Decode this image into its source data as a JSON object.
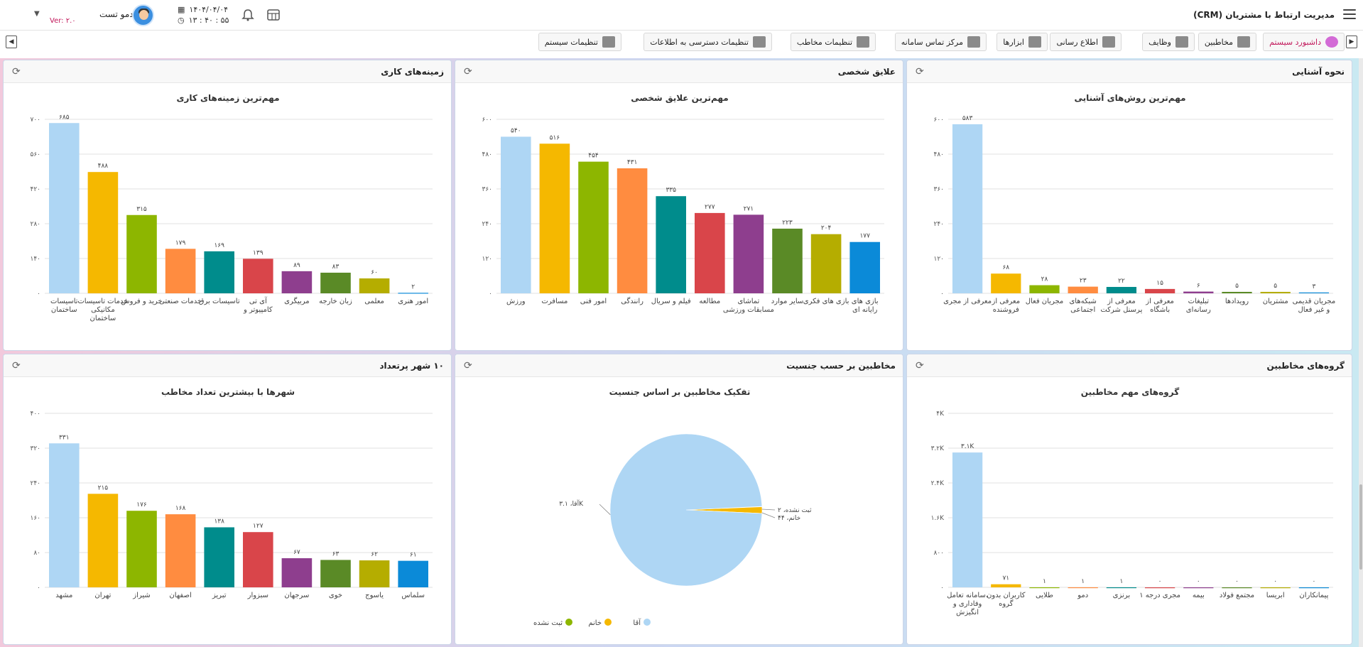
{
  "header": {
    "app_title": "مدیریت ارتباط با مشتریان (CRM)",
    "user_name": "دمو تست",
    "version": "Ver: ۲.۰",
    "date": "۱۴۰۴/۰۴/۰۴",
    "time": "۱۳ : ۴۰ : ۵۵"
  },
  "nav": {
    "items": [
      {
        "label": "داشبورد سیستم",
        "icon": "dashboard-icon"
      },
      {
        "label": "مخاطبین",
        "icon": "contacts-icon"
      },
      {
        "label": "وظایف",
        "icon": "bell-icon"
      },
      {
        "label": "اطلاع رسانی",
        "icon": "envelope-icon"
      },
      {
        "label": "ابزارها",
        "icon": "tools-icon"
      },
      {
        "label": "مرکز تماس سامانه",
        "icon": "phone-icon"
      },
      {
        "label": "تنظیمات مخاطب",
        "icon": "user-gear-icon"
      },
      {
        "label": "تنظیمات دسترسی به اطلاعات",
        "icon": "key-icon"
      },
      {
        "label": "تنظیمات سیستم",
        "icon": "gears-icon"
      }
    ]
  },
  "panels": {
    "acquaintance": {
      "title": "نحوه آشنایی"
    },
    "interests": {
      "title": "علایق شخصی"
    },
    "fields": {
      "title": "زمینه‌های کاری"
    },
    "groups": {
      "title": "گروه‌های مخاطبین"
    },
    "gender": {
      "title": "مخاطبین بر حسب جنسیت"
    },
    "cities": {
      "title": "۱۰ شهر پرتعداد"
    }
  },
  "chart_data": [
    {
      "id": "acquaintance",
      "type": "bar",
      "title": "مهم‌ترین روش‌های آشنایی",
      "categories": [
        "مجریان قدیمی و غیر فعال",
        "مشتریان",
        "رویدادها",
        "تبلیغات رسانه‌ای",
        "معرفی از باشگاه",
        "معرفی از پرسنل شرکت",
        "شبکه‌های اجتماعی",
        "مجریان فعال",
        "معرفی از فروشنده",
        "معرفی از مجری"
      ],
      "values": [
        3,
        5,
        5,
        6,
        15,
        22,
        23,
        28,
        68,
        583
      ],
      "value_labels": [
        "۳",
        "۵",
        "۵",
        "۶",
        "۱۵",
        "۲۲",
        "۲۳",
        "۲۸",
        "۶۸",
        "۵۸۳"
      ],
      "ylim": [
        0,
        600
      ],
      "yticks": [
        0,
        120,
        240,
        360,
        480,
        600
      ],
      "ytick_labels": [
        "۰",
        "۱۲۰",
        "۲۴۰",
        "۳۶۰",
        "۴۸۰",
        "۶۰۰"
      ]
    },
    {
      "id": "interests",
      "type": "bar",
      "title": "مهم‌ترین علایق شخصی",
      "categories": [
        "بازی های رایانه ای",
        "بازی های فکری",
        "سایر موارد",
        "تماشای مسابقات ورزشی",
        "مطالعه",
        "فیلم و سریال",
        "رانندگی",
        "امور فنی",
        "مسافرت",
        "ورزش"
      ],
      "values": [
        177,
        204,
        223,
        271,
        277,
        335,
        431,
        454,
        516,
        540
      ],
      "value_labels": [
        "۱۷۷",
        "۲۰۴",
        "۲۲۳",
        "۲۷۱",
        "۲۷۷",
        "۳۳۵",
        "۴۳۱",
        "۴۵۴",
        "۵۱۶",
        "۵۴۰"
      ],
      "ylim": [
        0,
        600
      ],
      "yticks": [
        0,
        120,
        240,
        360,
        480,
        600
      ],
      "ytick_labels": [
        "۰",
        "۱۲۰",
        "۲۴۰",
        "۳۶۰",
        "۴۸۰",
        "۶۰۰"
      ]
    },
    {
      "id": "fields",
      "type": "bar",
      "title": "مهم‌ترین زمینه‌های کاری",
      "categories": [
        "امور هنری",
        "معلمی",
        "زبان خارجه",
        "مربیگری",
        "آی تی کامپیوتر و",
        "تاسیسات برق",
        "خدمات صنعتی",
        "خرید و فروش",
        "خدمات تاسیسات مکانیکی ساختمان",
        "تاسیسات ساختمان"
      ],
      "values": [
        2,
        60,
        83,
        89,
        139,
        169,
        179,
        315,
        488,
        685
      ],
      "value_labels": [
        "۲",
        "۶۰",
        "۸۳",
        "۸۹",
        "۱۳۹",
        "۱۶۹",
        "۱۷۹",
        "۳۱۵",
        "۴۸۸",
        "۶۸۵"
      ],
      "ylim": [
        0,
        700
      ],
      "yticks": [
        0,
        140,
        280,
        420,
        560,
        700
      ],
      "ytick_labels": [
        "۰",
        "۱۴۰",
        "۲۸۰",
        "۴۲۰",
        "۵۶۰",
        "۷۰۰"
      ]
    },
    {
      "id": "groups",
      "type": "bar",
      "title": "گروه‌های مهم مخاطبین",
      "categories": [
        "پیمانکاران",
        "ابریسا",
        "مجتمع فولاد",
        "بیمه",
        "مجری درجه ۱",
        "برنزی",
        "دمو",
        "طلایی",
        "کاربران بدون گروه",
        "سامانه تعامل، وفاداری و انگیزش"
      ],
      "values": [
        0,
        0,
        0,
        0,
        0,
        1,
        1,
        1,
        71,
        3100
      ],
      "value_labels": [
        "۰",
        "۰",
        "۰",
        "۰",
        "۰",
        "۱",
        "۱",
        "۱",
        "۷۱",
        "۳.۱K"
      ],
      "ylim": [
        0,
        4000
      ],
      "yticks": [
        0,
        800,
        1600,
        2400,
        3200,
        4000
      ],
      "ytick_labels": [
        "۰",
        "۸۰۰",
        "۱.۶K",
        "۲.۴K",
        "۳.۲K",
        "۴K"
      ]
    },
    {
      "id": "gender",
      "type": "pie",
      "title": "تفکیک مخاطبین بر اساس جنسیت",
      "slices": [
        {
          "name": "آقا",
          "value": 3100,
          "label": "آقا، ۳.۱K",
          "color": "#aed6f4"
        },
        {
          "name": "ثبت نشده",
          "value": 2,
          "label": "ثبت نشده، ۲",
          "color": "#8db600"
        },
        {
          "name": "خانم",
          "value": 44,
          "label": "خانم، ۴۴",
          "color": "#f5b800"
        }
      ]
    },
    {
      "id": "cities",
      "type": "bar",
      "title": "شهرها با بیشترین تعداد مخاطب",
      "categories": [
        "سلماس",
        "یاسوج",
        "خوی",
        "سرجهان",
        "سبزوار",
        "تبریز",
        "اصفهان",
        "شیراز",
        "تهران",
        "مشهد"
      ],
      "values": [
        61,
        62,
        63,
        67,
        127,
        138,
        168,
        176,
        215,
        331
      ],
      "value_labels": [
        "۶۱",
        "۶۲",
        "۶۳",
        "۶۷",
        "۱۲۷",
        "۱۳۸",
        "۱۶۸",
        "۱۷۶",
        "۲۱۵",
        "۳۳۱"
      ],
      "ylim": [
        0,
        400
      ],
      "yticks": [
        0,
        80,
        160,
        240,
        320,
        400
      ],
      "ytick_labels": [
        "۰",
        "۸۰",
        "۱۶۰",
        "۲۴۰",
        "۳۲۰",
        "۴۰۰"
      ]
    }
  ],
  "palette": [
    "#0b8ad8",
    "#b5ad00",
    "#5a8a26",
    "#8e3e8e",
    "#d9454a",
    "#008c8c",
    "#ff8c40",
    "#8db600",
    "#f5b800",
    "#aed6f4"
  ]
}
